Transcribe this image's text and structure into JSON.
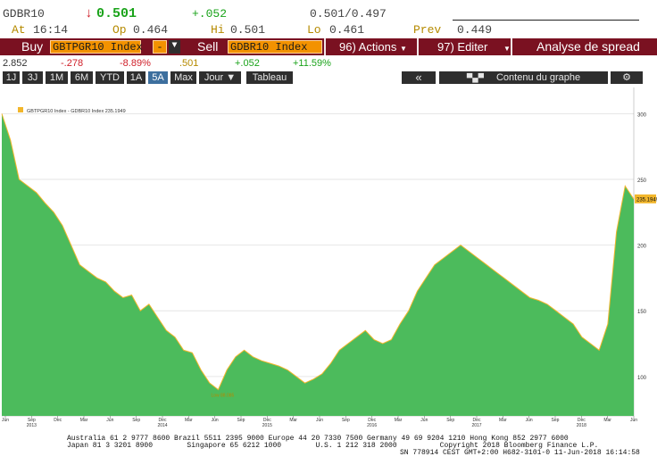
{
  "quote": {
    "ticker": "GDBR10",
    "arrow": "↓",
    "last": "0.501",
    "change": "+.052",
    "bid_ask": "0.501/0.497",
    "time_label": "At",
    "time": "16:14",
    "open_label": "Op",
    "open": "0.464",
    "high_label": "Hi",
    "high": "0.501",
    "low_label": "Lo",
    "low": "0.461",
    "prev_label": "Prev",
    "prev": "0.449"
  },
  "actions": {
    "buy": "Buy",
    "buy_security": "GBTPGR10 Index",
    "minus": "-",
    "sell": "Sell",
    "sell_security": "GDBR10 Index",
    "actions_menu": "96) Actions",
    "edit_menu": "97) Editer",
    "analysis": "Analyse de spread"
  },
  "stats": {
    "v1": "2.852",
    "v2": "-.278",
    "v3": "-8.89%",
    "v4": ".501",
    "v5": "+.052",
    "v6": "+11.59%"
  },
  "toolbar": {
    "periods": [
      "1J",
      "3J",
      "1M",
      "6M",
      "YTD",
      "1A",
      "5A",
      "Max"
    ],
    "active_period": "5A",
    "frequency": "Jour",
    "table": "Tableau",
    "back": "«",
    "content": "Contenu du graphe",
    "settings_icon": "gear-icon"
  },
  "chart_data": {
    "type": "area",
    "legend": "GBTPGR10 Index - GDBR10 Index 235.1949",
    "last_value_label": "235.1949",
    "low_annotation": "Low 88.085",
    "ylim": [
      70,
      320
    ],
    "yticks": [
      "100",
      "150",
      "200",
      "250",
      "300"
    ],
    "months": [
      "Jun",
      "Sep",
      "Dec",
      "Mar",
      "Jun",
      "Sep",
      "Dec",
      "Mar",
      "Jun",
      "Sep",
      "Dec",
      "Mar",
      "Jun",
      "Sep",
      "Dec",
      "Mar",
      "Jun",
      "Sep",
      "Dec",
      "Mar",
      "Jun",
      "Sep",
      "Dec",
      "Mar",
      "Jun"
    ],
    "years": [
      "2013",
      "2014",
      "2015",
      "2016",
      "2017",
      "2018"
    ],
    "values": [
      300,
      280,
      250,
      245,
      240,
      232,
      225,
      215,
      200,
      185,
      180,
      175,
      172,
      165,
      160,
      162,
      150,
      155,
      145,
      135,
      130,
      120,
      118,
      105,
      95,
      90,
      105,
      115,
      120,
      115,
      112,
      110,
      108,
      105,
      100,
      95,
      98,
      102,
      110,
      120,
      125,
      130,
      135,
      128,
      125,
      128,
      140,
      150,
      165,
      175,
      185,
      190,
      195,
      200,
      195,
      190,
      185,
      180,
      175,
      170,
      165,
      160,
      158,
      155,
      150,
      145,
      140,
      130,
      125,
      120,
      140,
      210,
      245,
      235
    ],
    "fill_color": "#4cbb5c",
    "line_color": "#f2b62b"
  },
  "footer": {
    "line1": "Australia 61 2 9777 8600 Brazil 5511 2395 9000 Europe 44 20 7330 7500 Germany 49 69 9204 1210 Hong Kong 852 2977 6000",
    "line2": "Japan 81 3 3201 8900        Singapore 65 6212 1000        U.S. 1 212 318 2000          Copyright 2018 Bloomberg Finance L.P.",
    "line3": "SN 778914 CEST GMT+2:00 H682-3101-0 11-Jun-2018 16:14:58"
  }
}
